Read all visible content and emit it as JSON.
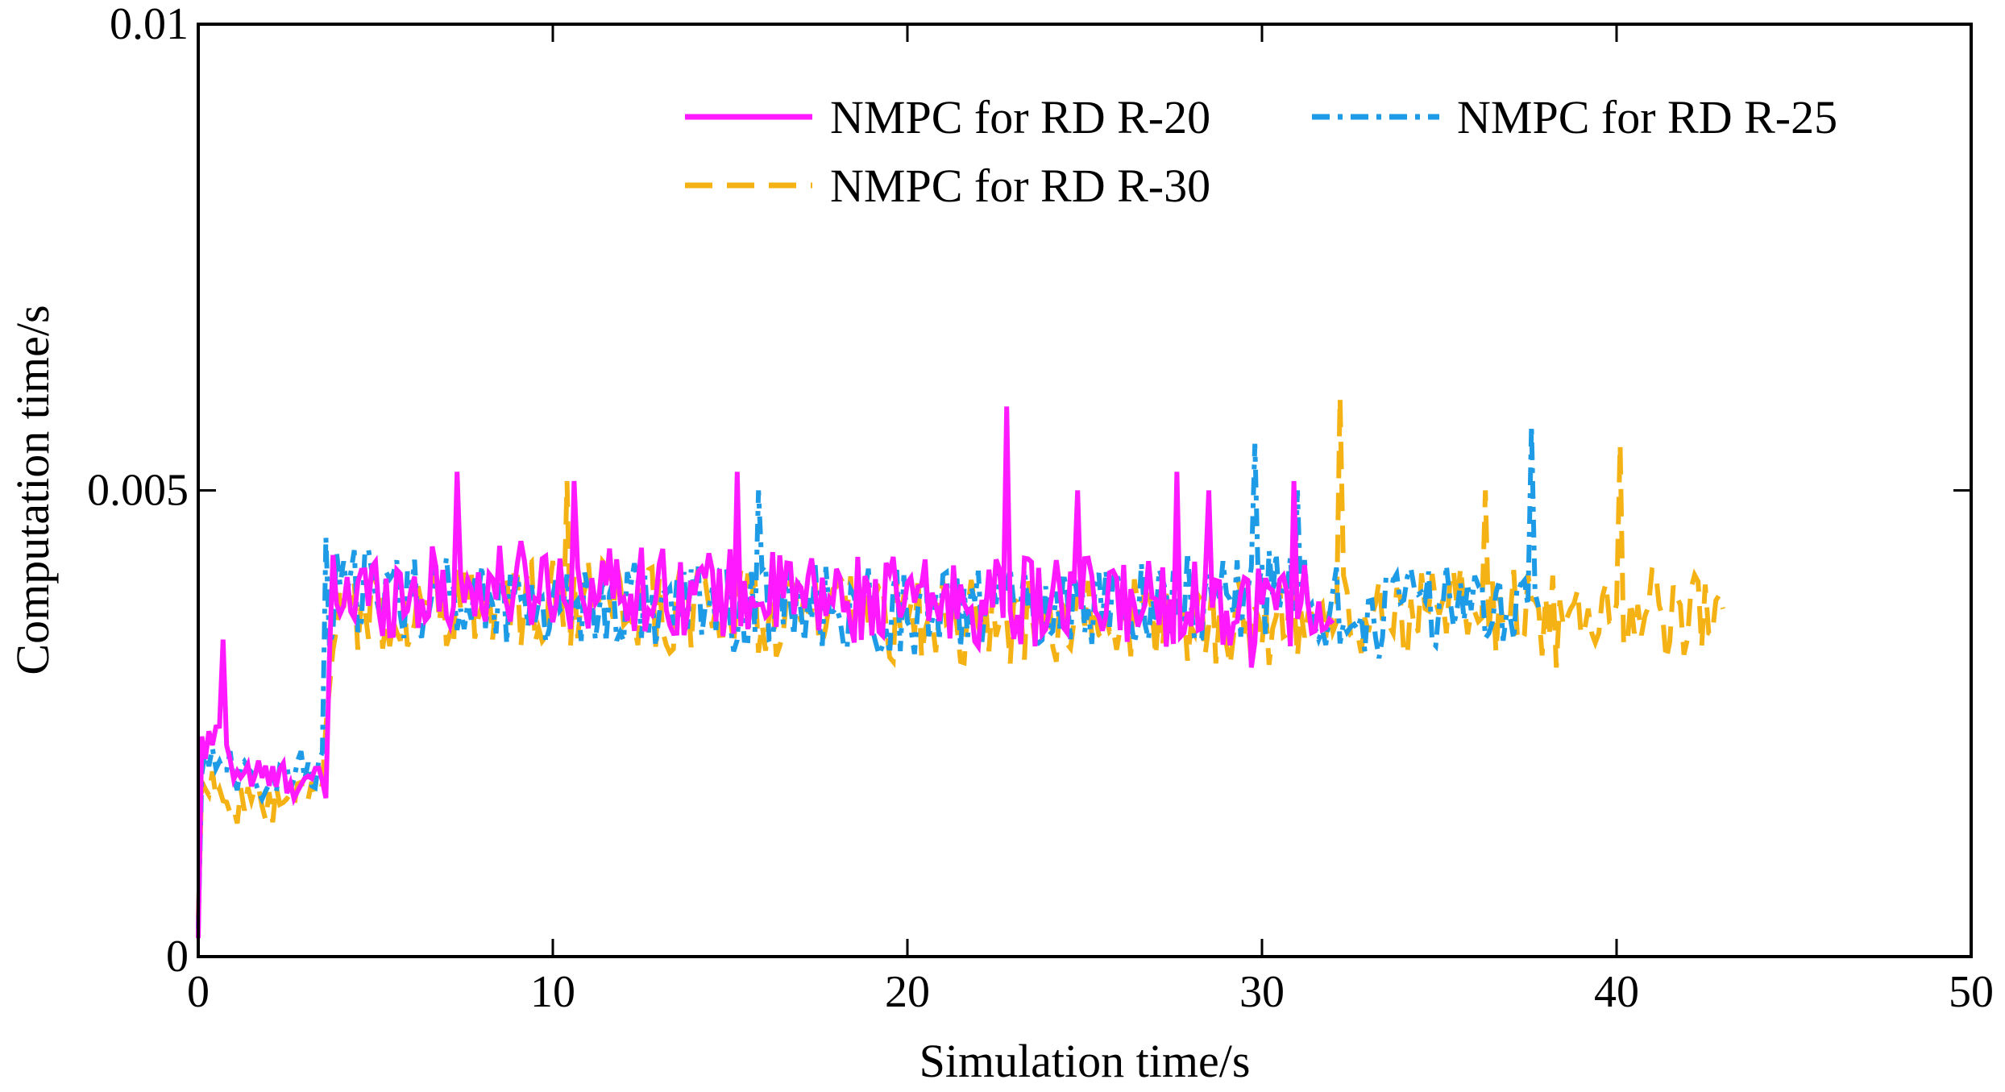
{
  "chart_data": {
    "type": "line",
    "title": "",
    "xlabel": "Simulation time/s",
    "ylabel": "Computation time/s",
    "xlim": [
      0,
      50
    ],
    "ylim": [
      0,
      0.01
    ],
    "x_ticks": [
      0,
      10,
      20,
      30,
      40,
      50
    ],
    "x_tick_labels": [
      "0",
      "10",
      "20",
      "30",
      "40",
      "50"
    ],
    "y_ticks": [
      0,
      0.005,
      0.01
    ],
    "y_tick_labels": [
      "0",
      "0.005",
      "0.01"
    ],
    "grid": false,
    "legend_position": "top-right",
    "series": [
      {
        "name": "NMPC for RD R-20",
        "color": "#ff19ff",
        "style": "solid",
        "end_time": 32,
        "envelope": [
          [
            0,
            0.0002
          ],
          [
            0.1,
            0.0022
          ],
          [
            0.7,
            0.0024
          ],
          [
            1,
            0.002
          ],
          [
            2,
            0.0019
          ],
          [
            3,
            0.0019
          ],
          [
            3.5,
            0.0018
          ],
          [
            3.8,
            0.0039
          ],
          [
            5,
            0.0039
          ],
          [
            10,
            0.004
          ],
          [
            20,
            0.0038
          ],
          [
            30,
            0.0038
          ],
          [
            32,
            0.0038
          ]
        ],
        "peaks": [
          [
            0.7,
            0.0034
          ],
          [
            3.6,
            0.0017
          ],
          [
            7.3,
            0.0052
          ],
          [
            10.6,
            0.0051
          ],
          [
            15.2,
            0.0052
          ],
          [
            22.8,
            0.0059
          ],
          [
            24.8,
            0.005
          ],
          [
            27.6,
            0.0052
          ],
          [
            28.5,
            0.005
          ],
          [
            30.9,
            0.0051
          ],
          [
            29.7,
            0.0031
          ]
        ]
      },
      {
        "name": "NMPC for RD R-25",
        "color": "#1e9be6",
        "style": "dashdot",
        "end_time": 37.8,
        "envelope": [
          [
            0,
            0.0003
          ],
          [
            0.1,
            0.0021
          ],
          [
            0.7,
            0.0022
          ],
          [
            1,
            0.0019
          ],
          [
            2,
            0.0019
          ],
          [
            3,
            0.002
          ],
          [
            3.5,
            0.002
          ],
          [
            3.8,
            0.0039
          ],
          [
            5,
            0.0039
          ],
          [
            10,
            0.0038
          ],
          [
            20,
            0.0037
          ],
          [
            30,
            0.0039
          ],
          [
            33,
            0.0037
          ],
          [
            37.8,
            0.0039
          ]
        ],
        "peaks": [
          [
            3.6,
            0.0045
          ],
          [
            15.8,
            0.005
          ],
          [
            29.8,
            0.0055
          ],
          [
            31,
            0.005
          ],
          [
            37.6,
            0.0057
          ],
          [
            33.3,
            0.0032
          ]
        ]
      },
      {
        "name": "NMPC for RD R-30",
        "color": "#f5b214",
        "style": "dashed",
        "end_time": 43,
        "envelope": [
          [
            0,
            0.0004
          ],
          [
            0.1,
            0.0019
          ],
          [
            0.7,
            0.0018
          ],
          [
            1,
            0.0016
          ],
          [
            2,
            0.0016
          ],
          [
            3,
            0.0017
          ],
          [
            3.5,
            0.0017
          ],
          [
            3.8,
            0.0037
          ],
          [
            5,
            0.0037
          ],
          [
            10,
            0.0038
          ],
          [
            20,
            0.0036
          ],
          [
            30,
            0.0036
          ],
          [
            35,
            0.0037
          ],
          [
            40,
            0.0037
          ],
          [
            43,
            0.0036
          ]
        ],
        "peaks": [
          [
            10.4,
            0.0051
          ],
          [
            32.2,
            0.006
          ],
          [
            40.1,
            0.0055
          ],
          [
            36.3,
            0.005
          ],
          [
            38.3,
            0.0031
          ]
        ]
      }
    ]
  }
}
